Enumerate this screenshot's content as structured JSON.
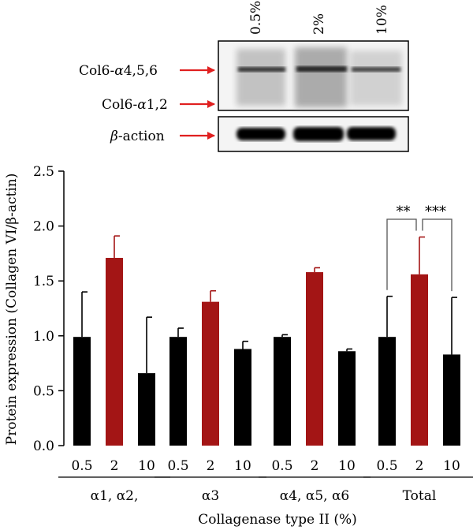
{
  "blot": {
    "lane_labels": [
      "0.5%",
      "2%",
      "10%"
    ],
    "band_labels": [
      {
        "prefix": "Col6-",
        "greek": "α",
        "suffix": "4,5,6"
      },
      {
        "prefix": "Col6-",
        "greek": "α",
        "suffix": "1,2"
      },
      {
        "prefix": "",
        "greek": "β",
        "suffix": "-action"
      }
    ],
    "arrow_color": "#e02020"
  },
  "chart_data": {
    "type": "bar",
    "ylabel": "Protein expression (Collagen VI/β-actin)",
    "xlabel": "Collagenase type II (%)",
    "ylim": [
      0,
      2.5
    ],
    "yticks": [
      "0.0",
      "0.5",
      "1.0",
      "1.5",
      "2.0",
      "2.5"
    ],
    "colors": {
      "control": "#000000",
      "highlight": "#a31515"
    },
    "groups": [
      {
        "name": "α1, α2,",
        "bars": [
          {
            "label": "0.5",
            "value": 0.99,
            "error": 0.41,
            "color": "control"
          },
          {
            "label": "2",
            "value": 1.71,
            "error": 0.2,
            "color": "highlight"
          },
          {
            "label": "10",
            "value": 0.66,
            "error": 0.51,
            "color": "control"
          }
        ]
      },
      {
        "name": "α3",
        "bars": [
          {
            "label": "0.5",
            "value": 0.99,
            "error": 0.08,
            "color": "control"
          },
          {
            "label": "2",
            "value": 1.31,
            "error": 0.1,
            "color": "highlight"
          },
          {
            "label": "10",
            "value": 0.88,
            "error": 0.07,
            "color": "control"
          }
        ]
      },
      {
        "name": "α4, α5, α6",
        "bars": [
          {
            "label": "0.5",
            "value": 0.99,
            "error": 0.02,
            "color": "control"
          },
          {
            "label": "2",
            "value": 1.58,
            "error": 0.04,
            "color": "highlight"
          },
          {
            "label": "10",
            "value": 0.86,
            "error": 0.02,
            "color": "control"
          }
        ]
      },
      {
        "name": "Total",
        "bars": [
          {
            "label": "0.5",
            "value": 0.99,
            "error": 0.37,
            "color": "control"
          },
          {
            "label": "2",
            "value": 1.56,
            "error": 0.34,
            "color": "highlight"
          },
          {
            "label": "10",
            "value": 0.83,
            "error": 0.52,
            "color": "control"
          }
        ]
      }
    ],
    "significance": [
      {
        "group": "Total",
        "from": "0.5",
        "to": "2",
        "label": "**"
      },
      {
        "group": "Total",
        "from": "2",
        "to": "10",
        "label": "***"
      }
    ]
  }
}
